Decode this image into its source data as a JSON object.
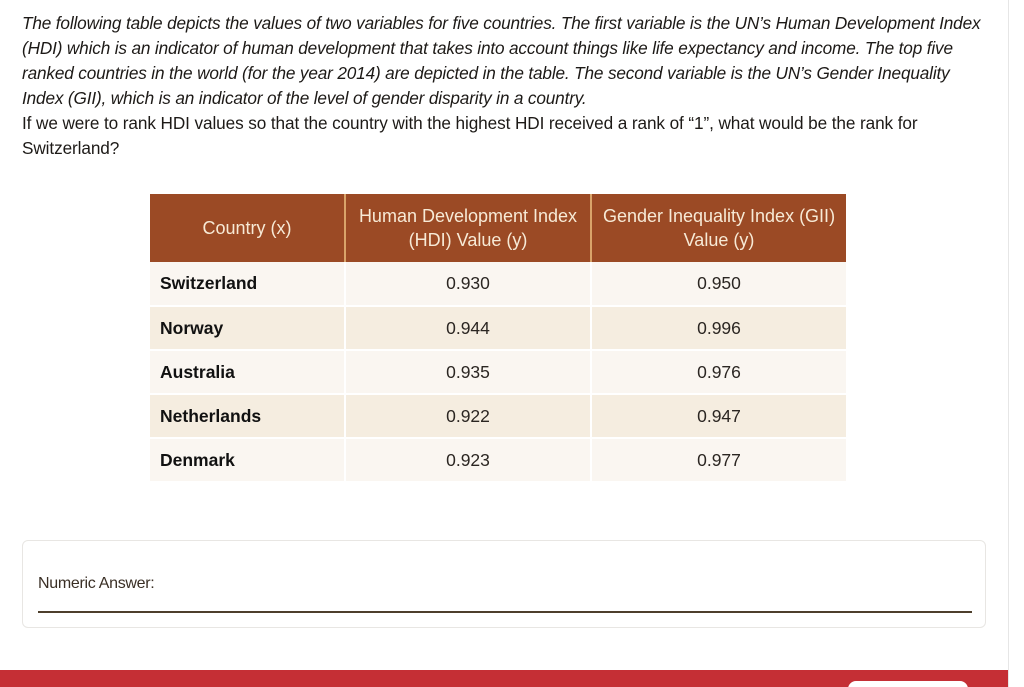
{
  "question": {
    "intro": "The following table depicts the values of two variables for five countries. The first variable is the UN’s Human Development Index (HDI) which is an indicator of human development that takes into account things like life expectancy and income. The top five ranked countries in the world (for the year 2014) are depicted in the table. The second variable is the UN’s Gender Inequality Index (GII), which is an indicator of the level of gender disparity in a country.",
    "prompt": "If we were to rank HDI values so that the country with the highest HDI received a rank of “1”, what would be the rank for Switzerland?"
  },
  "table": {
    "headers": {
      "country": "Country (x)",
      "hdi": "Human Development Index (HDI) Value (y)",
      "gii": "Gender Inequality Index (GII) Value (y)"
    },
    "rows": [
      {
        "country": "Switzerland",
        "hdi": "0.930",
        "gii": "0.950"
      },
      {
        "country": "Norway",
        "hdi": "0.944",
        "gii": "0.996"
      },
      {
        "country": "Australia",
        "hdi": "0.935",
        "gii": "0.976"
      },
      {
        "country": "Netherlands",
        "hdi": "0.922",
        "gii": "0.947"
      },
      {
        "country": "Denmark",
        "hdi": "0.923",
        "gii": "0.977"
      }
    ]
  },
  "answer": {
    "label": "Numeric Answer:",
    "value": "",
    "placeholder": ""
  },
  "colors": {
    "header_bg": "#9b4a25",
    "header_text": "#f7ead6",
    "row_light": "#faf6f1",
    "row_dark": "#f5ede0",
    "footer_bar": "#c52f35",
    "answer_underline": "#4e3f2c"
  }
}
